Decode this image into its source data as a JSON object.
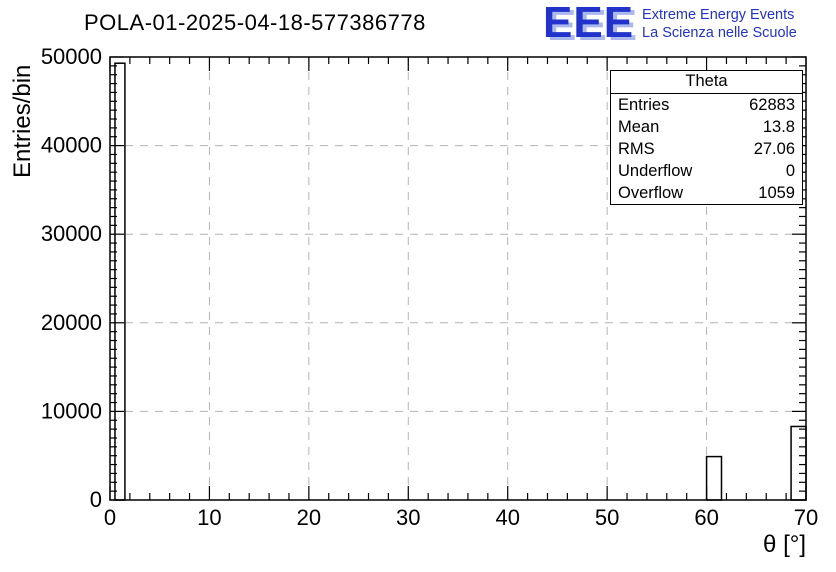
{
  "header": {
    "title": "POLA-01-2025-04-18-577386778",
    "logo": {
      "acronym": "EEE",
      "line1": "Extreme Energy Events",
      "line2": "La Scienza nelle Scuole",
      "color": "#2233cc",
      "shadow_color": "#aab8ec"
    }
  },
  "stats": {
    "title": "Theta",
    "rows": [
      {
        "label": "Entries",
        "value": "62883"
      },
      {
        "label": "Mean",
        "value": "13.8"
      },
      {
        "label": "RMS",
        "value": "27.06"
      },
      {
        "label": "Underflow",
        "value": "0"
      },
      {
        "label": "Overflow",
        "value": "1059"
      }
    ]
  },
  "chart_data": {
    "type": "bar",
    "title": "POLA-01-2025-04-18-577386778",
    "xlabel": "θ [°]",
    "ylabel": "Entries/bin",
    "xlim": [
      0,
      70
    ],
    "ylim": [
      0,
      50000
    ],
    "x_ticks": [
      0,
      10,
      20,
      30,
      40,
      50,
      60,
      70
    ],
    "y_ticks": [
      0,
      10000,
      20000,
      30000,
      40000,
      50000
    ],
    "x_major": 10,
    "x_minor": 2,
    "y_major": 10000,
    "y_minor": 1000,
    "grid": "dashed",
    "bins": [
      {
        "x0": 0.5,
        "x1": 1.5,
        "y": 49300
      },
      {
        "x0": 60.0,
        "x1": 61.5,
        "y": 4900
      },
      {
        "x0": 68.5,
        "x1": 70.0,
        "y": 8300
      }
    ],
    "stats": {
      "name": "Theta",
      "entries": 62883,
      "mean": 13.8,
      "rms": 27.06,
      "underflow": 0,
      "overflow": 1059
    }
  }
}
